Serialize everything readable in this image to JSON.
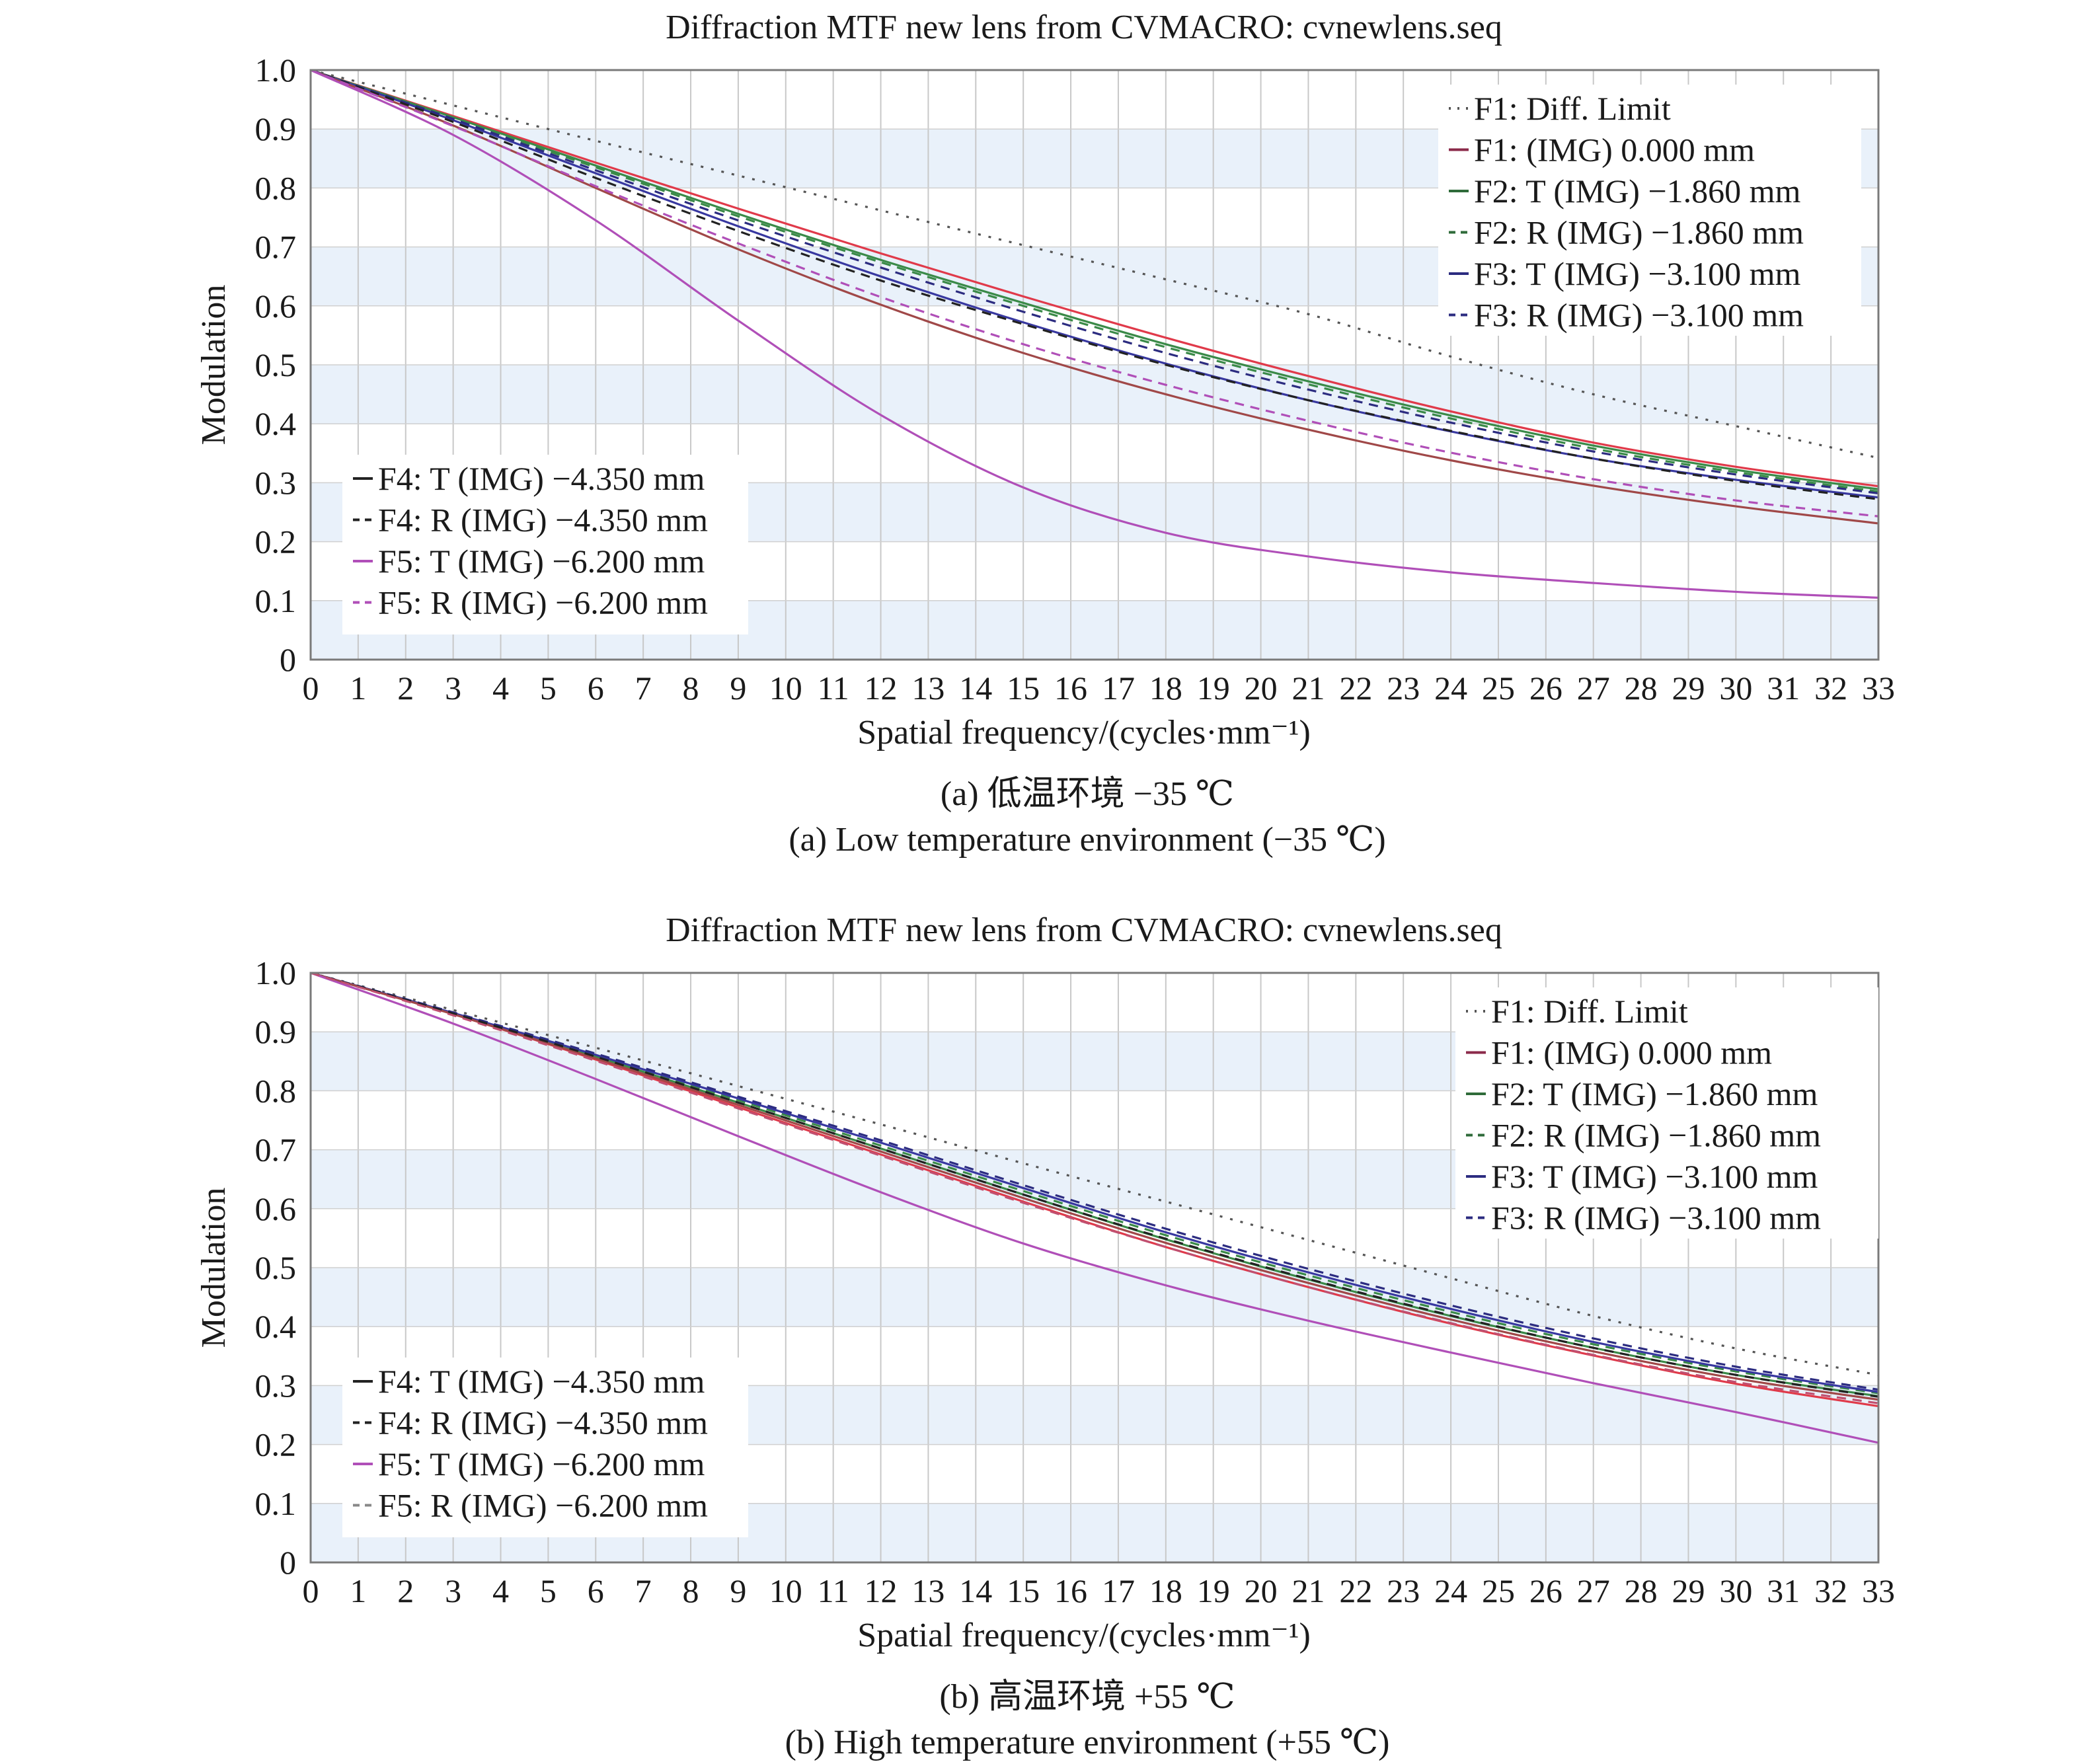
{
  "chart_data": [
    {
      "type": "line",
      "title": "Diffraction MTF new lens from CVMACRO: cvnewlens.seq",
      "xlabel": "Spatial frequency/(cycles·mm⁻¹)",
      "ylabel": "Modulation",
      "caption_cn": "(a) 低温环境 −35 ℃",
      "caption_en": "(a) Low temperature environment (−35 ℃)",
      "xlim": [
        0,
        33
      ],
      "ylim": [
        0,
        1.0
      ],
      "x_ticks": [
        "0",
        "1",
        "2",
        "3",
        "4",
        "5",
        "6",
        "7",
        "8",
        "9",
        "10",
        "11",
        "12",
        "13",
        "14",
        "15",
        "16",
        "17",
        "18",
        "19",
        "20",
        "21",
        "22",
        "23",
        "24",
        "25",
        "26",
        "27",
        "28",
        "29",
        "30",
        "31",
        "32",
        "33"
      ],
      "y_ticks": [
        "0",
        "0.1",
        "0.2",
        "0.3",
        "0.4",
        "0.5",
        "0.6",
        "0.7",
        "0.8",
        "0.9",
        "1.0"
      ],
      "grid": true,
      "legend_top_right": [
        {
          "label": "F1: Diff. Limit",
          "color": "#555555",
          "dash": "dot"
        },
        {
          "label": "F1: (IMG) 0.000 mm",
          "color": "#8b2a4a",
          "dash": "solid"
        },
        {
          "label": "F2: T (IMG) −1.860 mm",
          "color": "#2f6b3a",
          "dash": "solid"
        },
        {
          "label": "F2: R (IMG) −1.860 mm",
          "color": "#2f6b3a",
          "dash": "dash"
        },
        {
          "label": "F3: T (IMG) −3.100 mm",
          "color": "#2c2c80",
          "dash": "solid"
        },
        {
          "label": "F3: R (IMG) −3.100 mm",
          "color": "#2c2c80",
          "dash": "dash"
        }
      ],
      "legend_bottom_left": [
        {
          "label": "F4: T (IMG) −4.350 mm",
          "color": "#222222",
          "dash": "solid"
        },
        {
          "label": "F4: R (IMG) −4.350 mm",
          "color": "#222222",
          "dash": "dash"
        },
        {
          "label": "F5: T (IMG) −6.200 mm",
          "color": "#b04fb8",
          "dash": "solid"
        },
        {
          "label": "F5: R (IMG) −6.200 mm",
          "color": "#b04fb8",
          "dash": "dash"
        }
      ],
      "x": [
        0,
        3,
        6,
        9,
        12,
        15,
        18,
        21,
        24,
        27,
        30,
        33
      ],
      "series": [
        {
          "name": "F1: Diff. Limit",
          "color": "#555555",
          "dash": "dot",
          "values": [
            1.0,
            0.94,
            0.88,
            0.821,
            0.762,
            0.703,
            0.645,
            0.586,
            0.514,
            0.45,
            0.396,
            0.342
          ]
        },
        {
          "name": "F1: (IMG) 0.000 mm",
          "color": "#e03a4a",
          "dash": "solid",
          "values": [
            1.0,
            0.922,
            0.843,
            0.765,
            0.689,
            0.616,
            0.546,
            0.481,
            0.421,
            0.368,
            0.327,
            0.294
          ]
        },
        {
          "name": "F2: T (IMG) −1.860 mm",
          "color": "#3a8a48",
          "dash": "solid",
          "values": [
            1.0,
            0.92,
            0.838,
            0.756,
            0.678,
            0.605,
            0.535,
            0.472,
            0.414,
            0.363,
            0.322,
            0.289
          ]
        },
        {
          "name": "F2: R (IMG) −1.860 mm",
          "color": "#3a8a48",
          "dash": "dash",
          "values": [
            1.0,
            0.918,
            0.835,
            0.752,
            0.674,
            0.6,
            0.53,
            0.467,
            0.409,
            0.358,
            0.318,
            0.285
          ]
        },
        {
          "name": "F3: T (IMG) −3.100 mm",
          "color": "#3838a0",
          "dash": "solid",
          "values": [
            1.0,
            0.915,
            0.825,
            0.735,
            0.65,
            0.572,
            0.502,
            0.44,
            0.387,
            0.341,
            0.305,
            0.275
          ]
        },
        {
          "name": "F3: R (IMG) −3.100 mm",
          "color": "#2c2c80",
          "dash": "dash",
          "values": [
            1.0,
            0.917,
            0.83,
            0.745,
            0.665,
            0.59,
            0.52,
            0.458,
            0.402,
            0.353,
            0.314,
            0.282
          ]
        },
        {
          "name": "F4: T (IMG) −4.350 mm",
          "color": "#a04848",
          "dash": "solid",
          "values": [
            1.0,
            0.906,
            0.8,
            0.696,
            0.602,
            0.52,
            0.45,
            0.39,
            0.338,
            0.295,
            0.26,
            0.231
          ]
        },
        {
          "name": "F4: R (IMG) −4.350 mm",
          "color": "#222222",
          "dash": "dash",
          "values": [
            1.0,
            0.912,
            0.817,
            0.727,
            0.643,
            0.569,
            0.5,
            0.44,
            0.388,
            0.341,
            0.303,
            0.272
          ]
        },
        {
          "name": "F5: T (IMG) −6.200 mm",
          "color": "#b04fb8",
          "dash": "solid",
          "values": [
            1.0,
            0.89,
            0.745,
            0.575,
            0.415,
            0.292,
            0.215,
            0.175,
            0.148,
            0.13,
            0.115,
            0.105
          ]
        },
        {
          "name": "F5: R (IMG) −6.200 mm",
          "color": "#b04fb8",
          "dash": "dash",
          "values": [
            1.0,
            0.905,
            0.803,
            0.706,
            0.615,
            0.535,
            0.466,
            0.405,
            0.351,
            0.306,
            0.27,
            0.243
          ]
        }
      ]
    },
    {
      "type": "line",
      "title": "Diffraction MTF new lens from CVMACRO: cvnewlens.seq",
      "xlabel": "Spatial frequency/(cycles·mm⁻¹)",
      "ylabel": "Modulation",
      "caption_cn": "(b) 高温环境 +55 ℃",
      "caption_en": "(b) High temperature environment (+55 ℃)",
      "xlim": [
        0,
        33
      ],
      "ylim": [
        0,
        1.0
      ],
      "x_ticks": [
        "0",
        "1",
        "2",
        "3",
        "4",
        "5",
        "6",
        "7",
        "8",
        "9",
        "10",
        "11",
        "12",
        "13",
        "14",
        "15",
        "16",
        "17",
        "18",
        "19",
        "20",
        "21",
        "22",
        "23",
        "24",
        "25",
        "26",
        "27",
        "28",
        "29",
        "30",
        "31",
        "32",
        "33"
      ],
      "y_ticks": [
        "0",
        "0.1",
        "0.2",
        "0.3",
        "0.4",
        "0.5",
        "0.6",
        "0.7",
        "0.8",
        "0.9",
        "1.0"
      ],
      "grid": true,
      "legend_top_right": [
        {
          "label": "F1: Diff. Limit",
          "color": "#555555",
          "dash": "dot"
        },
        {
          "label": "F1: (IMG) 0.000 mm",
          "color": "#8b2a4a",
          "dash": "solid"
        },
        {
          "label": "F2: T (IMG) −1.860 mm",
          "color": "#2f6b3a",
          "dash": "solid"
        },
        {
          "label": "F2: R (IMG) −1.860 mm",
          "color": "#2f6b3a",
          "dash": "dash"
        },
        {
          "label": "F3: T (IMG) −3.100 mm",
          "color": "#2c2c80",
          "dash": "solid"
        },
        {
          "label": "F3: R (IMG) −3.100 mm",
          "color": "#2c2c80",
          "dash": "dash"
        }
      ],
      "legend_bottom_left": [
        {
          "label": "F4: T (IMG) −4.350 mm",
          "color": "#222222",
          "dash": "solid"
        },
        {
          "label": "F4: R (IMG) −4.350 mm",
          "color": "#222222",
          "dash": "dash"
        },
        {
          "label": "F5: T (IMG) −6.200 mm",
          "color": "#b04fb8",
          "dash": "solid"
        },
        {
          "label": "F5: R (IMG) −6.200 mm",
          "color": "#888888",
          "dash": "dash"
        }
      ],
      "x": [
        0,
        3,
        6,
        9,
        12,
        15,
        18,
        21,
        24,
        27,
        30,
        33
      ],
      "series": [
        {
          "name": "F1: Diff. Limit",
          "color": "#555555",
          "dash": "dot",
          "values": [
            1.0,
            0.937,
            0.873,
            0.808,
            0.743,
            0.677,
            0.612,
            0.547,
            0.482,
            0.418,
            0.363,
            0.318
          ]
        },
        {
          "name": "F1: (IMG) 0.000 mm",
          "color": "#e03a4a",
          "dash": "solid",
          "values": [
            1.0,
            0.93,
            0.853,
            0.772,
            0.692,
            0.612,
            0.535,
            0.467,
            0.405,
            0.351,
            0.303,
            0.265
          ]
        },
        {
          "name": "F2: T (IMG) −1.860 mm",
          "color": "#3a8a48",
          "dash": "solid",
          "values": [
            1.0,
            0.931,
            0.858,
            0.78,
            0.702,
            0.624,
            0.548,
            0.48,
            0.418,
            0.364,
            0.318,
            0.282
          ]
        },
        {
          "name": "F2: R (IMG) −1.860 mm",
          "color": "#3a8a48",
          "dash": "dash",
          "values": [
            1.0,
            0.932,
            0.86,
            0.784,
            0.707,
            0.63,
            0.555,
            0.487,
            0.425,
            0.37,
            0.324,
            0.287
          ]
        },
        {
          "name": "F3: T (IMG) −3.100 mm",
          "color": "#3838a0",
          "dash": "solid",
          "values": [
            1.0,
            0.932,
            0.861,
            0.787,
            0.712,
            0.635,
            0.56,
            0.492,
            0.43,
            0.374,
            0.327,
            0.289
          ]
        },
        {
          "name": "F3: R (IMG) −3.100 mm",
          "color": "#2c2c80",
          "dash": "dash",
          "values": [
            1.0,
            0.933,
            0.863,
            0.79,
            0.716,
            0.64,
            0.566,
            0.498,
            0.436,
            0.38,
            0.332,
            0.293
          ]
        },
        {
          "name": "F4: T (IMG) −4.350 mm",
          "color": "#a04848",
          "dash": "solid",
          "values": [
            1.0,
            0.93,
            0.855,
            0.776,
            0.697,
            0.618,
            0.542,
            0.474,
            0.412,
            0.358,
            0.312,
            0.276
          ]
        },
        {
          "name": "F4: R (IMG) −4.350 mm",
          "color": "#222222",
          "dash": "dash",
          "values": [
            1.0,
            0.931,
            0.858,
            0.78,
            0.702,
            0.624,
            0.549,
            0.481,
            0.419,
            0.364,
            0.318,
            0.281
          ]
        },
        {
          "name": "F5: T (IMG) −6.200 mm",
          "color": "#b04fb8",
          "dash": "solid",
          "values": [
            1.0,
            0.914,
            0.82,
            0.723,
            0.628,
            0.541,
            0.47,
            0.41,
            0.356,
            0.304,
            0.255,
            0.203
          ]
        },
        {
          "name": "F5: R (IMG) −6.200 mm",
          "color": "#c05070",
          "dash": "dash",
          "values": [
            1.0,
            0.928,
            0.851,
            0.77,
            0.69,
            0.61,
            0.535,
            0.467,
            0.406,
            0.352,
            0.306,
            0.27
          ]
        }
      ]
    }
  ]
}
